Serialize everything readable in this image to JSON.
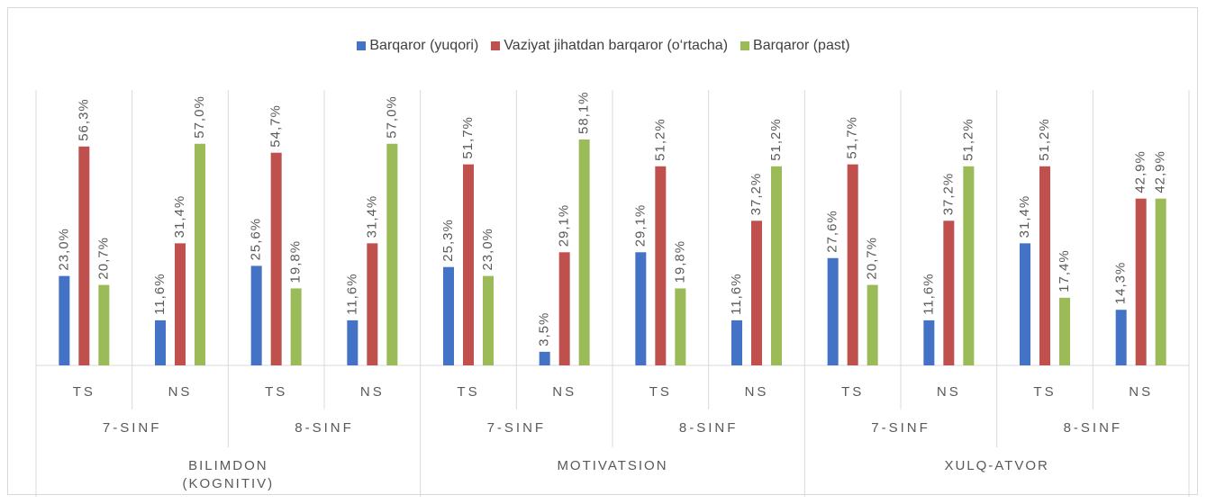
{
  "chart_data": {
    "type": "bar",
    "categories": [
      "TS",
      "NS",
      "TS",
      "NS",
      "TS",
      "NS",
      "TS",
      "NS",
      "TS",
      "NS",
      "TS",
      "NS"
    ],
    "subgroups": [
      "7-SINF",
      "8-SINF",
      "7-SINF",
      "8-SINF",
      "7-SINF",
      "8-SINF"
    ],
    "groups": [
      "BILIMDON (KOGNITIV)",
      "MOTIVATSION",
      "XULQ-ATVOR"
    ],
    "series": [
      {
        "name": "Barqaror (yuqori)",
        "color": "#4472c4",
        "values": [
          23.0,
          11.6,
          25.6,
          11.6,
          25.3,
          3.5,
          29.1,
          11.6,
          27.6,
          11.6,
          31.4,
          14.3
        ],
        "value_labels": [
          "23,0%",
          "11,6%",
          "25,6%",
          "11,6%",
          "25,3%",
          "3,5%",
          "29,1%",
          "11,6%",
          "27,6%",
          "11,6%",
          "31,4%",
          "14,3%"
        ]
      },
      {
        "name": "Vaziyat jihatdan barqaror (o‘rtacha)",
        "color": "#c0504d",
        "values": [
          56.3,
          31.4,
          54.7,
          31.4,
          51.7,
          29.1,
          51.2,
          37.2,
          51.7,
          37.2,
          51.2,
          42.9
        ],
        "value_labels": [
          "56,3%",
          "31,4%",
          "54,7%",
          "31,4%",
          "51,7%",
          "29,1%",
          "51,2%",
          "37,2%",
          "51,7%",
          "37,2%",
          "51,2%",
          "42,9%"
        ]
      },
      {
        "name": "Barqaror (past)",
        "color": "#9bbb59",
        "values": [
          20.7,
          57.0,
          19.8,
          57.0,
          23.0,
          58.1,
          19.8,
          51.2,
          20.7,
          51.2,
          17.4,
          42.9
        ],
        "value_labels": [
          "20,7%",
          "57,0%",
          "19,8%",
          "57,0%",
          "23,0%",
          "58,1%",
          "19,8%",
          "51,2%",
          "20,7%",
          "51,2%",
          "17,4%",
          "42,9%"
        ]
      }
    ]
  }
}
